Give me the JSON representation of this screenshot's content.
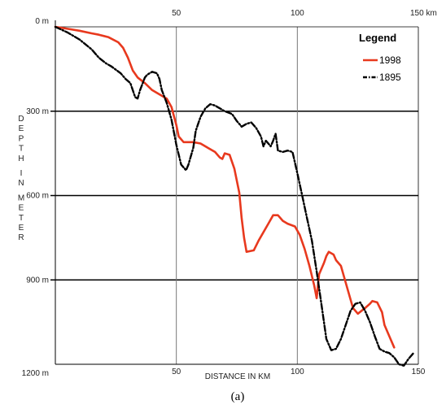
{
  "chart_data": {
    "type": "line",
    "title": "",
    "xlabel": "DISTANCE IN KM",
    "ylabel": "DEPTH IN METER",
    "xlim": [
      0,
      150
    ],
    "ylim": [
      0,
      1200
    ],
    "y_inverted": true,
    "x_ticks_top": [
      {
        "value": 50,
        "label": "50"
      },
      {
        "value": 100,
        "label": "100"
      },
      {
        "value": 150,
        "label": "150 km"
      }
    ],
    "x_ticks_bottom": [
      {
        "value": 50,
        "label": "50"
      },
      {
        "value": 100,
        "label": "100"
      },
      {
        "value": 150,
        "label": "150"
      }
    ],
    "y_ticks": [
      {
        "value": 0,
        "label": "0 m"
      },
      {
        "value": 300,
        "label": "300 m"
      },
      {
        "value": 600,
        "label": "600 m"
      },
      {
        "value": 900,
        "label": "900 m"
      },
      {
        "value": 1200,
        "label": "1200 m"
      }
    ],
    "grid": "horizontal lines at 300, 600, 900; vertical lines at 50 and 100",
    "legend": {
      "title": "Legend",
      "placement": "top-right"
    },
    "caption": "(a)",
    "series": [
      {
        "name": "1998",
        "color": "#e8391e",
        "style": "solid",
        "points": [
          [
            0,
            0
          ],
          [
            5,
            7
          ],
          [
            10,
            14
          ],
          [
            15,
            23
          ],
          [
            18,
            28
          ],
          [
            22,
            37
          ],
          [
            26,
            55
          ],
          [
            28,
            75
          ],
          [
            30,
            110
          ],
          [
            32,
            155
          ],
          [
            34,
            180
          ],
          [
            37,
            200
          ],
          [
            40,
            225
          ],
          [
            44,
            245
          ],
          [
            46,
            255
          ],
          [
            48,
            285
          ],
          [
            50,
            350
          ],
          [
            51,
            390
          ],
          [
            53,
            410
          ],
          [
            57,
            410
          ],
          [
            60,
            415
          ],
          [
            63,
            430
          ],
          [
            66,
            445
          ],
          [
            68,
            465
          ],
          [
            69,
            470
          ],
          [
            70,
            450
          ],
          [
            72,
            455
          ],
          [
            74,
            505
          ],
          [
            76,
            590
          ],
          [
            77,
            680
          ],
          [
            78,
            750
          ],
          [
            79,
            800
          ],
          [
            82,
            795
          ],
          [
            84,
            760
          ],
          [
            88,
            700
          ],
          [
            90,
            670
          ],
          [
            92,
            670
          ],
          [
            94,
            690
          ],
          [
            96,
            700
          ],
          [
            99,
            710
          ],
          [
            101,
            740
          ],
          [
            103,
            790
          ],
          [
            105,
            850
          ],
          [
            107,
            920
          ],
          [
            108,
            965
          ],
          [
            109,
            880
          ],
          [
            111,
            840
          ],
          [
            112,
            815
          ],
          [
            113,
            800
          ],
          [
            115,
            810
          ],
          [
            116,
            830
          ],
          [
            118,
            850
          ],
          [
            120,
            910
          ],
          [
            123,
            1000
          ],
          [
            125,
            1020
          ],
          [
            128,
            1000
          ],
          [
            130,
            985
          ],
          [
            131,
            975
          ],
          [
            133,
            980
          ],
          [
            135,
            1015
          ],
          [
            136,
            1060
          ],
          [
            138,
            1100
          ],
          [
            140,
            1140
          ]
        ]
      },
      {
        "name": "1895",
        "color": "#000000",
        "style": "dash-dot",
        "points": [
          [
            0,
            0
          ],
          [
            5,
            20
          ],
          [
            10,
            45
          ],
          [
            15,
            80
          ],
          [
            18,
            110
          ],
          [
            21,
            130
          ],
          [
            23,
            140
          ],
          [
            27,
            165
          ],
          [
            29,
            185
          ],
          [
            31,
            200
          ],
          [
            32,
            225
          ],
          [
            33,
            250
          ],
          [
            34,
            255
          ],
          [
            35,
            225
          ],
          [
            37,
            180
          ],
          [
            38,
            170
          ],
          [
            40,
            160
          ],
          [
            42,
            165
          ],
          [
            43,
            185
          ],
          [
            44,
            225
          ],
          [
            46,
            270
          ],
          [
            48,
            330
          ],
          [
            50,
            420
          ],
          [
            52,
            490
          ],
          [
            54,
            510
          ],
          [
            55,
            490
          ],
          [
            57,
            430
          ],
          [
            58,
            370
          ],
          [
            60,
            320
          ],
          [
            62,
            290
          ],
          [
            64,
            275
          ],
          [
            66,
            280
          ],
          [
            68,
            290
          ],
          [
            70,
            300
          ],
          [
            73,
            310
          ],
          [
            75,
            335
          ],
          [
            77,
            355
          ],
          [
            79,
            345
          ],
          [
            81,
            340
          ],
          [
            83,
            360
          ],
          [
            85,
            390
          ],
          [
            86,
            425
          ],
          [
            87,
            405
          ],
          [
            88,
            415
          ],
          [
            89,
            425
          ],
          [
            90,
            405
          ],
          [
            91,
            380
          ],
          [
            92,
            440
          ],
          [
            94,
            445
          ],
          [
            96,
            440
          ],
          [
            98,
            445
          ],
          [
            100,
            520
          ],
          [
            102,
            600
          ],
          [
            104,
            680
          ],
          [
            106,
            760
          ],
          [
            108,
            870
          ],
          [
            110,
            990
          ],
          [
            112,
            1110
          ],
          [
            114,
            1150
          ],
          [
            116,
            1145
          ],
          [
            118,
            1110
          ],
          [
            120,
            1060
          ],
          [
            122,
            1010
          ],
          [
            124,
            985
          ],
          [
            126,
            980
          ],
          [
            128,
            1010
          ],
          [
            130,
            1050
          ],
          [
            132,
            1100
          ],
          [
            134,
            1145
          ],
          [
            136,
            1155
          ],
          [
            138,
            1160
          ],
          [
            140,
            1175
          ],
          [
            142,
            1200
          ],
          [
            144,
            1205
          ],
          [
            146,
            1180
          ],
          [
            148,
            1160
          ]
        ]
      }
    ]
  }
}
